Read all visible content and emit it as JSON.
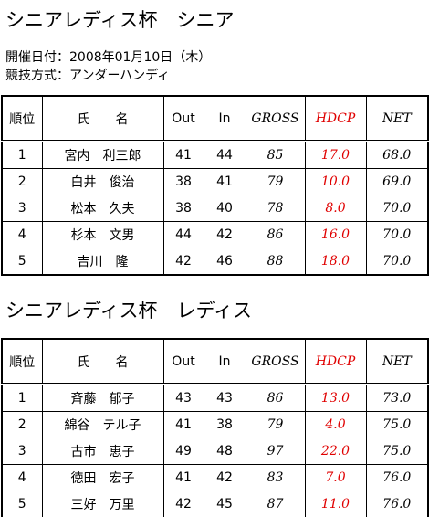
{
  "sections": [
    {
      "title": "シニアレディス杯　シニア",
      "info": [
        "開催日付：2008年01月10日（木）",
        "競技方式：アンダーハンディ"
      ],
      "table": {
        "headers": [
          "順位",
          "氏　　名",
          "Out",
          "In",
          "GROSS",
          "HDCP",
          "NET"
        ],
        "rows": [
          [
            "1",
            "宮内　利三郎",
            "41",
            "44",
            "85",
            "17.0",
            "68.0"
          ],
          [
            "2",
            "白井　俊治",
            "38",
            "41",
            "79",
            "10.0",
            "69.0"
          ],
          [
            "3",
            "松本　久夫",
            "38",
            "40",
            "78",
            "8.0",
            "70.0"
          ],
          [
            "4",
            "杉本　文男",
            "44",
            "42",
            "86",
            "16.0",
            "70.0"
          ],
          [
            "5",
            "吉川　隆",
            "42",
            "46",
            "88",
            "18.0",
            "70.0"
          ]
        ]
      }
    },
    {
      "title": "シニアレディス杯　レディス",
      "table": {
        "headers": [
          "順位",
          "氏　　名",
          "Out",
          "In",
          "GROSS",
          "HDCP",
          "NET"
        ],
        "rows": [
          [
            "1",
            "斉藤　郁子",
            "43",
            "43",
            "86",
            "13.0",
            "73.0"
          ],
          [
            "2",
            "綿谷　テル子",
            "41",
            "38",
            "79",
            "4.0",
            "75.0"
          ],
          [
            "3",
            "古市　恵子",
            "49",
            "48",
            "97",
            "22.0",
            "75.0"
          ],
          [
            "4",
            "徳田　宏子",
            "41",
            "42",
            "83",
            "7.0",
            "76.0"
          ],
          [
            "5",
            "三好　万里",
            "42",
            "45",
            "87",
            "11.0",
            "76.0"
          ]
        ]
      }
    }
  ]
}
